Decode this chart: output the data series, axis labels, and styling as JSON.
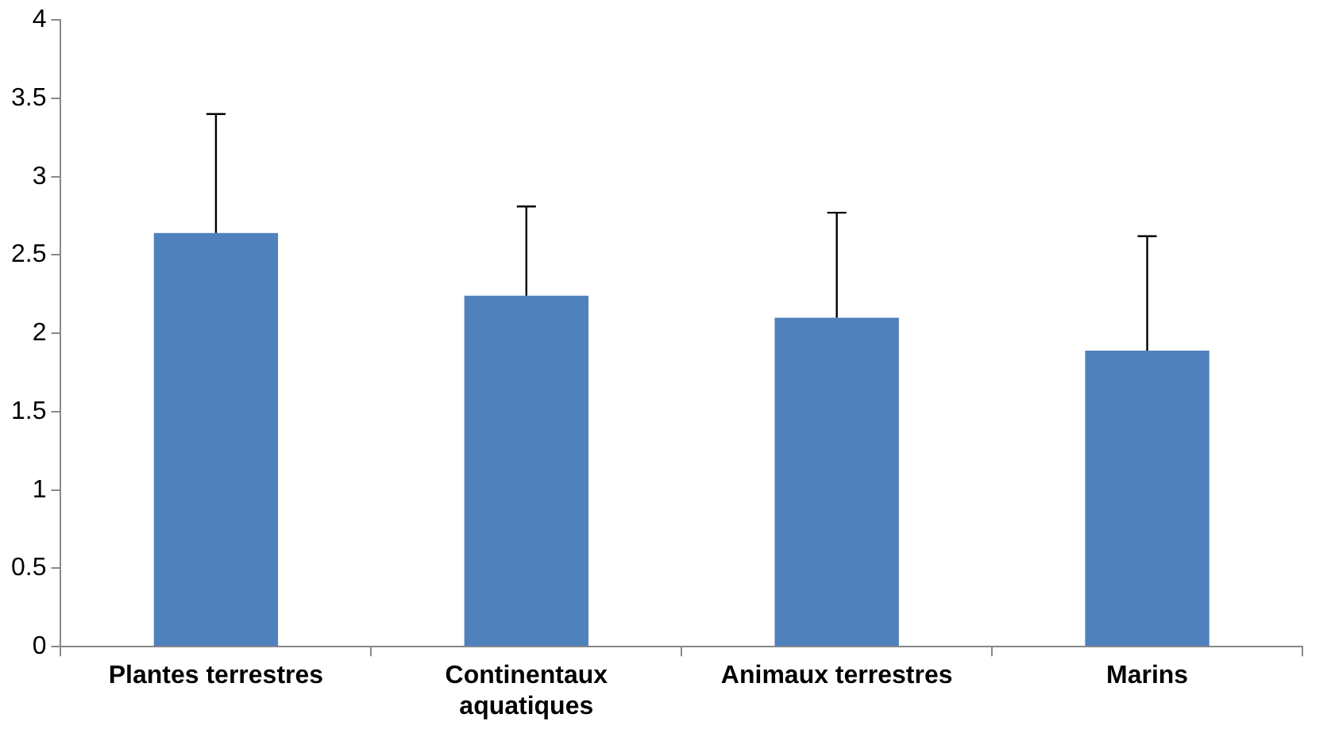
{
  "chart_data": {
    "type": "bar",
    "categories": [
      "Plantes terrestres",
      "Continentaux aquatiques",
      "Animaux terrestres",
      "Marins"
    ],
    "values": [
      2.64,
      2.24,
      2.1,
      1.89
    ],
    "errors": [
      [
        2.64,
        3.4
      ],
      [
        2.24,
        2.81
      ],
      [
        2.1,
        2.77
      ],
      [
        1.89,
        2.62
      ]
    ],
    "color": "#4f81bd",
    "ylim": [
      0,
      4
    ],
    "yticks": [
      0,
      0.5,
      1,
      1.5,
      2,
      2.5,
      3,
      3.5,
      4
    ],
    "grid": false,
    "legend": false
  }
}
